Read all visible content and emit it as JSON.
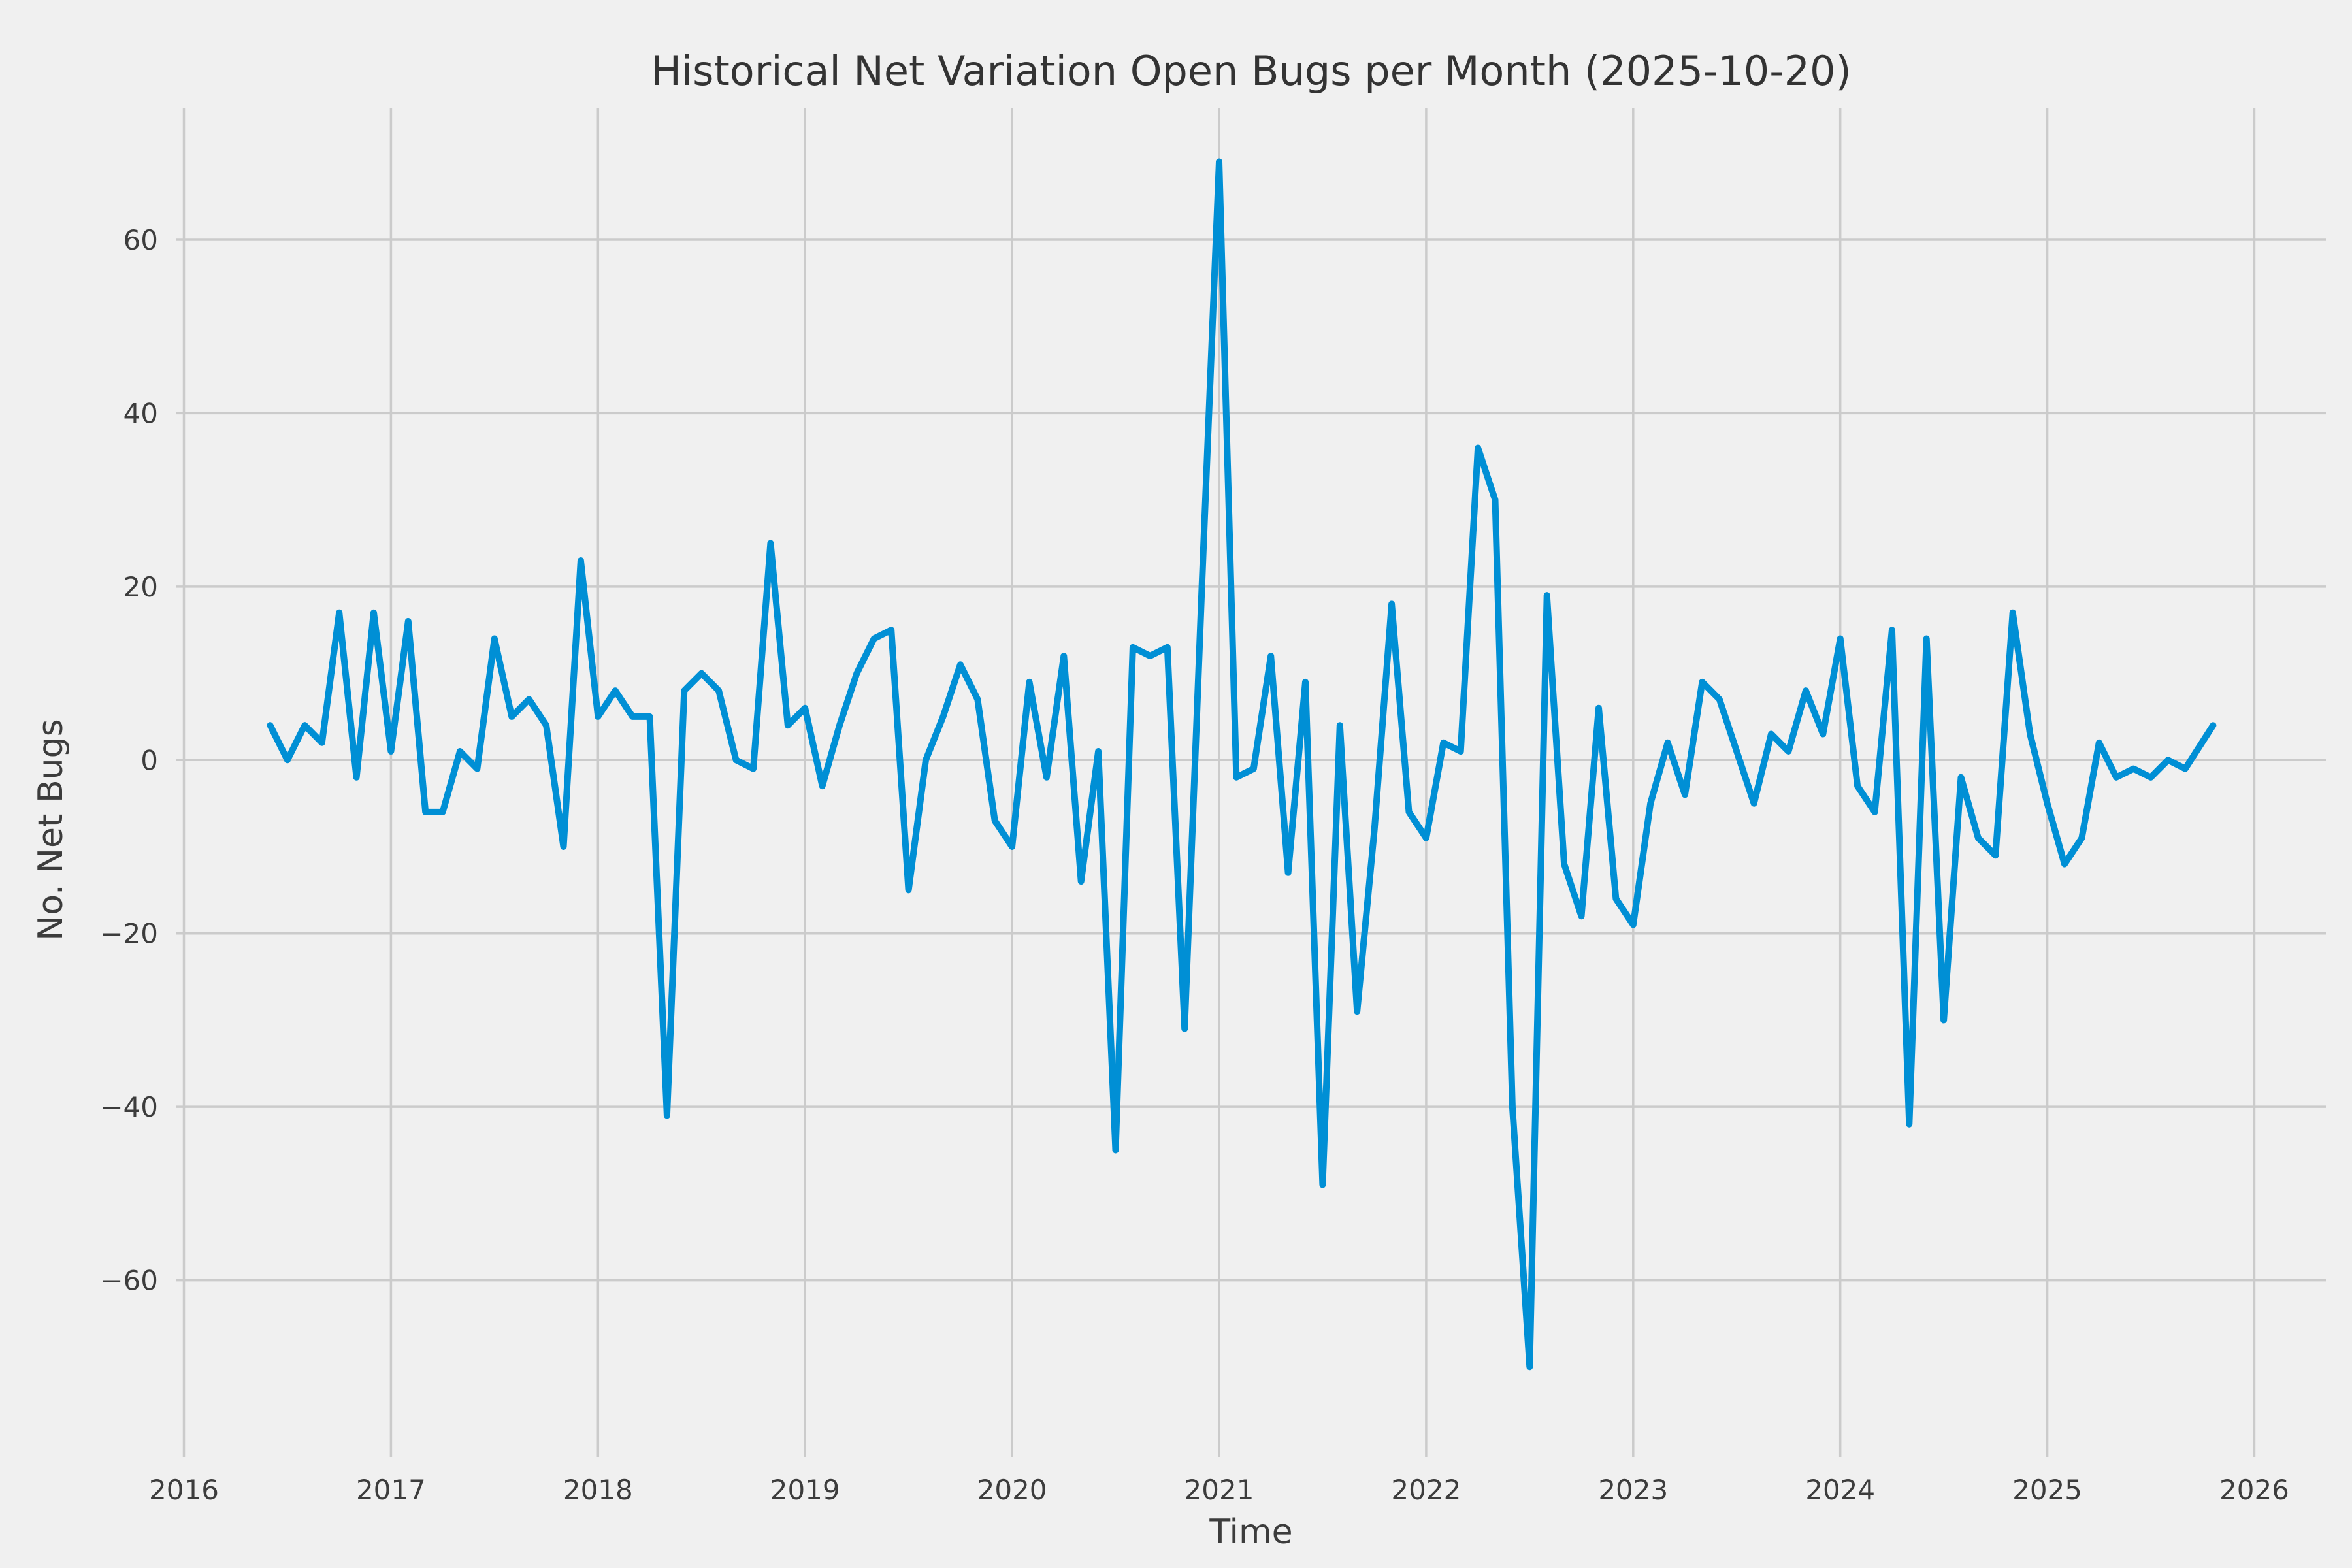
{
  "title": "Historical Net Variation Open Bugs per Month (2025-10-20)",
  "chart_data": {
    "type": "line",
    "title": "Historical Net Variation Open Bugs per Month (2025-10-20)",
    "xlabel": "Time",
    "ylabel": "No. Net Bugs",
    "legend": false,
    "grid": true,
    "style": "fivethirtyeight",
    "line_color": "#008fd5",
    "background_color": "#f0f0f0",
    "grid_color": "#cbcbcb",
    "x_tick_labels": [
      "2016",
      "2017",
      "2018",
      "2019",
      "2020",
      "2021",
      "2022",
      "2023",
      "2024",
      "2025",
      "2026"
    ],
    "y_tick_labels": [
      "−60",
      "−40",
      "−20",
      "0",
      "20",
      "40",
      "60"
    ],
    "y_tick_values": [
      -60,
      -40,
      -20,
      0,
      20,
      40,
      60
    ],
    "ylim": [
      -80,
      75
    ],
    "xlim_months": [
      "2015-12",
      "2026-05"
    ],
    "first_point": "2016-06",
    "last_point_date": "2025-10-20",
    "categories": [
      "2016-06",
      "2016-07",
      "2016-08",
      "2016-09",
      "2016-10",
      "2016-11",
      "2016-12",
      "2017-01",
      "2017-02",
      "2017-03",
      "2017-04",
      "2017-05",
      "2017-06",
      "2017-07",
      "2017-08",
      "2017-09",
      "2017-10",
      "2017-11",
      "2017-12",
      "2018-01",
      "2018-02",
      "2018-03",
      "2018-04",
      "2018-05",
      "2018-06",
      "2018-07",
      "2018-08",
      "2018-09",
      "2018-10",
      "2018-11",
      "2018-12",
      "2019-01",
      "2019-02",
      "2019-03",
      "2019-04",
      "2019-05",
      "2019-06",
      "2019-07",
      "2019-08",
      "2019-09",
      "2019-10",
      "2019-11",
      "2019-12",
      "2020-01",
      "2020-02",
      "2020-03",
      "2020-04",
      "2020-05",
      "2020-06",
      "2020-07",
      "2020-08",
      "2020-09",
      "2020-10",
      "2020-11",
      "2020-12",
      "2021-01",
      "2021-02",
      "2021-03",
      "2021-04",
      "2021-05",
      "2021-06",
      "2021-07",
      "2021-08",
      "2021-09",
      "2021-10",
      "2021-11",
      "2021-12",
      "2022-01",
      "2022-02",
      "2022-03",
      "2022-04",
      "2022-05",
      "2022-06",
      "2022-07",
      "2022-08",
      "2022-09",
      "2022-10",
      "2022-11",
      "2022-12",
      "2023-01",
      "2023-02",
      "2023-03",
      "2023-04",
      "2023-05",
      "2023-06",
      "2023-07",
      "2023-08",
      "2023-09",
      "2023-10",
      "2023-11",
      "2023-12",
      "2024-01",
      "2024-02",
      "2024-03",
      "2024-04",
      "2024-05",
      "2024-06",
      "2024-07",
      "2024-08",
      "2024-09",
      "2024-10",
      "2024-11",
      "2024-12",
      "2025-01",
      "2025-02",
      "2025-03",
      "2025-04",
      "2025-05",
      "2025-06",
      "2025-07",
      "2025-08",
      "2025-09",
      "2025-10"
    ],
    "values": [
      4,
      0,
      4,
      2,
      17,
      -2,
      17,
      1,
      16,
      -6,
      -6,
      1,
      -1,
      14,
      5,
      7,
      4,
      -10,
      23,
      5,
      8,
      5,
      5,
      -41,
      8,
      10,
      8,
      0,
      -1,
      25,
      4,
      6,
      -3,
      4,
      10,
      14,
      15,
      -15,
      0,
      5,
      11,
      7,
      -7,
      -10,
      9,
      -2,
      12,
      -14,
      1,
      -45,
      13,
      12,
      13,
      -31,
      20,
      69,
      -2,
      -1,
      12,
      -13,
      9,
      -49,
      4,
      -29,
      -8,
      18,
      -6,
      -9,
      2,
      1,
      36,
      30,
      -40,
      -70,
      19,
      -12,
      -18,
      6,
      -16,
      -19,
      -5,
      2,
      -4,
      9,
      7,
      1,
      -5,
      3,
      1,
      8,
      3,
      14,
      -3,
      -6,
      15,
      -42,
      14,
      -30,
      -2,
      -9,
      -11,
      17,
      3,
      -5,
      -12,
      -9,
      2,
      -2,
      -1,
      -2,
      0,
      -1,
      4
    ]
  }
}
